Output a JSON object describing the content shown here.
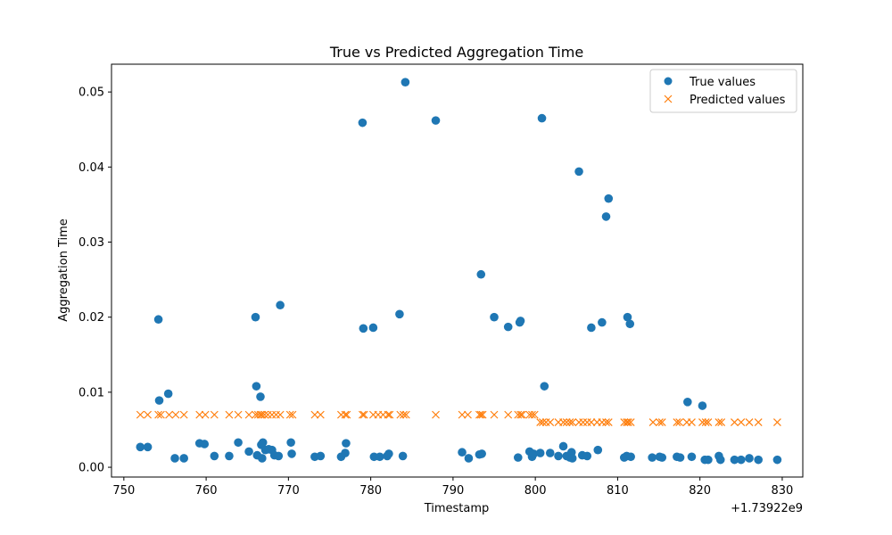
{
  "chart_data": {
    "type": "scatter",
    "title": "True vs Predicted Aggregation Time",
    "xlabel": "Timestamp",
    "ylabel": "Aggregation Time",
    "x_offset_label": "+1.73922e9",
    "xlim": [
      748.5,
      832.5
    ],
    "ylim": [
      -0.0013,
      0.0537
    ],
    "xticks": [
      750,
      760,
      770,
      780,
      790,
      800,
      810,
      820,
      830
    ],
    "yticks": [
      0.0,
      0.01,
      0.02,
      0.03,
      0.04,
      0.05
    ],
    "ytick_labels": [
      "0.00",
      "0.01",
      "0.02",
      "0.03",
      "0.04",
      "0.05"
    ],
    "grid": false,
    "legend_position": "top-right",
    "series": [
      {
        "name": "True values",
        "marker": "circle",
        "color": "#1f77b4",
        "points": [
          [
            752.0,
            0.0027
          ],
          [
            752.9,
            0.0027
          ],
          [
            754.2,
            0.0197
          ],
          [
            754.3,
            0.0089
          ],
          [
            755.4,
            0.0098
          ],
          [
            756.2,
            0.0012
          ],
          [
            757.3,
            0.0012
          ],
          [
            759.2,
            0.0032
          ],
          [
            759.8,
            0.0031
          ],
          [
            761.0,
            0.0015
          ],
          [
            762.8,
            0.0015
          ],
          [
            763.9,
            0.0033
          ],
          [
            765.2,
            0.0021
          ],
          [
            766.0,
            0.02
          ],
          [
            766.1,
            0.0108
          ],
          [
            766.2,
            0.0016
          ],
          [
            766.6,
            0.0094
          ],
          [
            766.7,
            0.003
          ],
          [
            766.8,
            0.0012
          ],
          [
            766.9,
            0.0033
          ],
          [
            767.2,
            0.0023
          ],
          [
            767.6,
            0.0024
          ],
          [
            768.0,
            0.0023
          ],
          [
            768.3,
            0.0016
          ],
          [
            768.8,
            0.0015
          ],
          [
            769.0,
            0.0216
          ],
          [
            770.3,
            0.0033
          ],
          [
            770.4,
            0.0018
          ],
          [
            773.2,
            0.0014
          ],
          [
            773.9,
            0.0015
          ],
          [
            776.4,
            0.0014
          ],
          [
            776.9,
            0.0019
          ],
          [
            777.0,
            0.0032
          ],
          [
            779.0,
            0.0459
          ],
          [
            779.1,
            0.0185
          ],
          [
            780.3,
            0.0186
          ],
          [
            780.4,
            0.0014
          ],
          [
            781.1,
            0.0014
          ],
          [
            782.0,
            0.0015
          ],
          [
            782.2,
            0.0018
          ],
          [
            783.5,
            0.0204
          ],
          [
            783.9,
            0.0015
          ],
          [
            784.2,
            0.0513
          ],
          [
            787.9,
            0.0462
          ],
          [
            791.1,
            0.002
          ],
          [
            791.9,
            0.0012
          ],
          [
            793.2,
            0.0017
          ],
          [
            793.4,
            0.0257
          ],
          [
            793.5,
            0.0018
          ],
          [
            795.0,
            0.02
          ],
          [
            796.7,
            0.0187
          ],
          [
            797.9,
            0.0013
          ],
          [
            798.1,
            0.0193
          ],
          [
            798.2,
            0.0195
          ],
          [
            799.3,
            0.0021
          ],
          [
            799.6,
            0.0014
          ],
          [
            799.8,
            0.0018
          ],
          [
            800.6,
            0.0019
          ],
          [
            800.8,
            0.0465
          ],
          [
            801.1,
            0.0108
          ],
          [
            801.8,
            0.0019
          ],
          [
            802.8,
            0.0015
          ],
          [
            803.4,
            0.0028
          ],
          [
            803.8,
            0.0015
          ],
          [
            804.2,
            0.0013
          ],
          [
            804.4,
            0.002
          ],
          [
            804.5,
            0.0012
          ],
          [
            805.3,
            0.0394
          ],
          [
            805.7,
            0.0016
          ],
          [
            806.3,
            0.0015
          ],
          [
            806.8,
            0.0186
          ],
          [
            807.6,
            0.0023
          ],
          [
            808.1,
            0.0193
          ],
          [
            808.6,
            0.0334
          ],
          [
            808.9,
            0.0358
          ],
          [
            810.8,
            0.0013
          ],
          [
            811.1,
            0.0015
          ],
          [
            811.2,
            0.02
          ],
          [
            811.5,
            0.0191
          ],
          [
            811.6,
            0.0014
          ],
          [
            814.2,
            0.0013
          ],
          [
            815.1,
            0.0014
          ],
          [
            815.4,
            0.0013
          ],
          [
            817.2,
            0.0014
          ],
          [
            817.6,
            0.0013
          ],
          [
            818.5,
            0.0087
          ],
          [
            819.0,
            0.0014
          ],
          [
            820.3,
            0.0082
          ],
          [
            820.6,
            0.001
          ],
          [
            821.0,
            0.001
          ],
          [
            822.3,
            0.0015
          ],
          [
            822.5,
            0.001
          ],
          [
            824.2,
            0.001
          ],
          [
            825.0,
            0.001
          ],
          [
            826.0,
            0.0012
          ],
          [
            827.1,
            0.001
          ],
          [
            829.4,
            0.001
          ]
        ]
      },
      {
        "name": "Predicted values",
        "marker": "x",
        "color": "#ff7f0e",
        "points": [
          [
            752.0,
            0.007
          ],
          [
            752.9,
            0.007
          ],
          [
            754.2,
            0.007
          ],
          [
            754.5,
            0.007
          ],
          [
            755.5,
            0.007
          ],
          [
            756.3,
            0.007
          ],
          [
            757.3,
            0.007
          ],
          [
            759.2,
            0.007
          ],
          [
            759.9,
            0.007
          ],
          [
            761.0,
            0.007
          ],
          [
            762.8,
            0.007
          ],
          [
            763.9,
            0.007
          ],
          [
            765.2,
            0.007
          ],
          [
            766.0,
            0.007
          ],
          [
            766.3,
            0.007
          ],
          [
            766.6,
            0.007
          ],
          [
            766.8,
            0.007
          ],
          [
            767.1,
            0.007
          ],
          [
            767.5,
            0.007
          ],
          [
            768.0,
            0.007
          ],
          [
            768.5,
            0.007
          ],
          [
            769.0,
            0.007
          ],
          [
            770.2,
            0.007
          ],
          [
            770.5,
            0.007
          ],
          [
            773.2,
            0.007
          ],
          [
            773.9,
            0.007
          ],
          [
            776.4,
            0.007
          ],
          [
            776.9,
            0.007
          ],
          [
            777.1,
            0.007
          ],
          [
            779.0,
            0.007
          ],
          [
            779.2,
            0.007
          ],
          [
            780.3,
            0.007
          ],
          [
            780.9,
            0.007
          ],
          [
            781.5,
            0.007
          ],
          [
            782.1,
            0.007
          ],
          [
            782.3,
            0.007
          ],
          [
            783.6,
            0.007
          ],
          [
            784.0,
            0.007
          ],
          [
            784.3,
            0.007
          ],
          [
            787.9,
            0.007
          ],
          [
            791.1,
            0.007
          ],
          [
            791.8,
            0.007
          ],
          [
            793.2,
            0.007
          ],
          [
            793.4,
            0.007
          ],
          [
            793.6,
            0.007
          ],
          [
            795.0,
            0.007
          ],
          [
            796.7,
            0.007
          ],
          [
            797.9,
            0.007
          ],
          [
            798.2,
            0.007
          ],
          [
            798.4,
            0.007
          ],
          [
            799.3,
            0.007
          ],
          [
            799.6,
            0.007
          ],
          [
            799.9,
            0.007
          ],
          [
            800.6,
            0.006
          ],
          [
            800.9,
            0.006
          ],
          [
            801.3,
            0.006
          ],
          [
            801.8,
            0.006
          ],
          [
            802.8,
            0.006
          ],
          [
            803.4,
            0.006
          ],
          [
            803.8,
            0.006
          ],
          [
            804.2,
            0.006
          ],
          [
            804.5,
            0.006
          ],
          [
            805.3,
            0.006
          ],
          [
            805.8,
            0.006
          ],
          [
            806.3,
            0.006
          ],
          [
            806.8,
            0.006
          ],
          [
            807.5,
            0.006
          ],
          [
            808.1,
            0.006
          ],
          [
            808.6,
            0.006
          ],
          [
            808.9,
            0.006
          ],
          [
            810.8,
            0.006
          ],
          [
            811.1,
            0.006
          ],
          [
            811.3,
            0.006
          ],
          [
            811.6,
            0.006
          ],
          [
            814.3,
            0.006
          ],
          [
            815.1,
            0.006
          ],
          [
            815.4,
            0.006
          ],
          [
            817.2,
            0.006
          ],
          [
            817.5,
            0.006
          ],
          [
            818.4,
            0.006
          ],
          [
            819.0,
            0.006
          ],
          [
            820.3,
            0.006
          ],
          [
            820.7,
            0.006
          ],
          [
            821.0,
            0.006
          ],
          [
            822.3,
            0.006
          ],
          [
            822.6,
            0.006
          ],
          [
            824.2,
            0.006
          ],
          [
            825.0,
            0.006
          ],
          [
            826.0,
            0.006
          ],
          [
            827.1,
            0.006
          ],
          [
            829.4,
            0.006
          ]
        ]
      }
    ]
  }
}
